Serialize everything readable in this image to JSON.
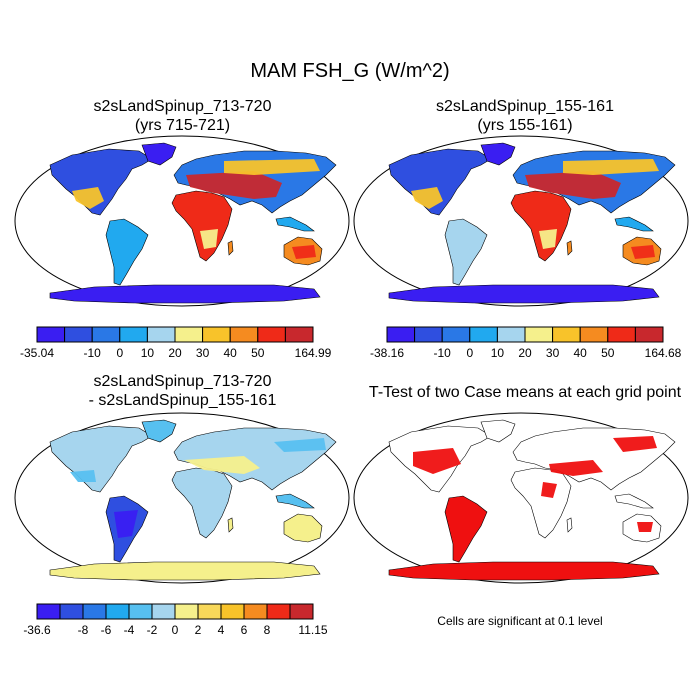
{
  "main_title": "MAM FSH_G (W/m^2)",
  "panels": [
    {
      "title_line1": "s2sLandSpinup_713-720",
      "title_line2": "(yrs 715-721)",
      "style": "abs1",
      "colorbar": {
        "colors": [
          "#3a1ef2",
          "#2f4fe0",
          "#2a78e6",
          "#21a9ef",
          "#a6d5ee",
          "#f5f08c",
          "#f8c32a",
          "#f58b20",
          "#ef2a18",
          "#c8282d"
        ],
        "labels": [
          "-35.04",
          "-10",
          "0",
          "10",
          "20",
          "30",
          "40",
          "50",
          "164.99"
        ]
      }
    },
    {
      "title_line1": "s2sLandSpinup_155-161",
      "title_line2": "(yrs 155-161)",
      "style": "abs2",
      "colorbar": {
        "colors": [
          "#3a1ef2",
          "#2f4fe0",
          "#2a78e6",
          "#21a9ef",
          "#a6d5ee",
          "#f5f08c",
          "#f8c32a",
          "#f58b20",
          "#ef2a18",
          "#c8282d"
        ],
        "labels": [
          "-38.16",
          "-10",
          "0",
          "10",
          "20",
          "30",
          "40",
          "50",
          "164.68"
        ]
      }
    },
    {
      "title_line1": "s2sLandSpinup_713-720",
      "title_line2": "- s2sLandSpinup_155-161",
      "style": "diff",
      "colorbar": {
        "colors": [
          "#3a1ef2",
          "#2f4fe0",
          "#2a78e6",
          "#21a9ef",
          "#57c0f0",
          "#a6d5ee",
          "#f5f08c",
          "#f8d85a",
          "#f8c32a",
          "#f58b20",
          "#ef2a18",
          "#c8282d"
        ],
        "labels": [
          "-36.6",
          "-8",
          "-6",
          "-4",
          "-2",
          "0",
          "2",
          "4",
          "6",
          "8",
          "11.15"
        ]
      }
    },
    {
      "title_line1": "T-Test of two Case means at each grid point",
      "title_line2": "",
      "style": "ttest",
      "note": "Cells are significant at 0.1 level"
    }
  ],
  "chart_data": [
    {
      "type": "heatmap",
      "title": "s2sLandSpinup_713-720 (yrs 715-721)",
      "variable": "MAM FSH_G (W/m^2)",
      "colorbar_levels": [
        -35.04,
        -10,
        0,
        10,
        20,
        30,
        40,
        50,
        164.99
      ]
    },
    {
      "type": "heatmap",
      "title": "s2sLandSpinup_155-161 (yrs 155-161)",
      "variable": "MAM FSH_G (W/m^2)",
      "colorbar_levels": [
        -38.16,
        -10,
        0,
        10,
        20,
        30,
        40,
        50,
        164.68
      ]
    },
    {
      "type": "heatmap",
      "title": "s2sLandSpinup_713-720 - s2sLandSpinup_155-161",
      "variable": "MAM FSH_G (W/m^2)",
      "colorbar_levels": [
        -36.6,
        -8,
        -6,
        -4,
        -2,
        0,
        2,
        4,
        6,
        8,
        11.15
      ]
    },
    {
      "type": "heatmap",
      "title": "T-Test of two Case means at each grid point",
      "annotation": "Cells are significant at 0.1 level"
    }
  ]
}
